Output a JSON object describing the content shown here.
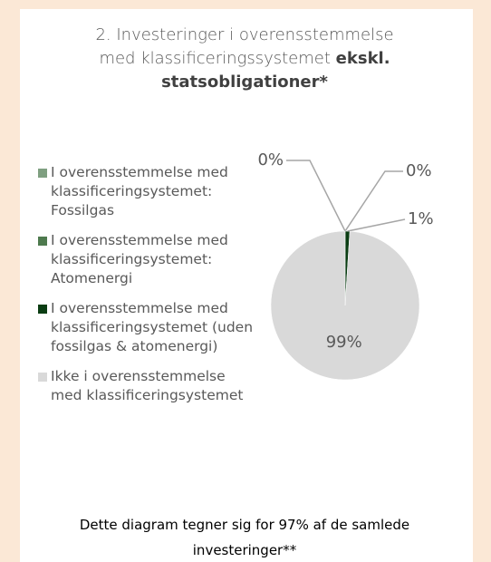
{
  "chart_data": {
    "type": "pie",
    "title": "2. Investeringer i overensstemmelse med klassificeringssystemet",
    "title_emphasis": "ekskl. statsobligationer*",
    "categories": [
      "I overensstemmelse med klassificeringsystemet: Fossilgas",
      "I overensstemmelse med klassificeringsystemet: Atomenergi",
      "I overensstemmelse med klassificeringsystemet (uden fossilgas & atomenergi)",
      "Ikke i overensstemmelse med klassificeringsystemet"
    ],
    "values": [
      0,
      0,
      1,
      99
    ],
    "value_labels": [
      "0%",
      "0%",
      "1%",
      "99%"
    ],
    "colors": [
      "#7f9f80",
      "#4e7a4e",
      "#0b3d13",
      "#d9d9d9"
    ],
    "legend": "left",
    "note": "Dette diagram tegner sig for 97% af de samlede investeringer**"
  }
}
